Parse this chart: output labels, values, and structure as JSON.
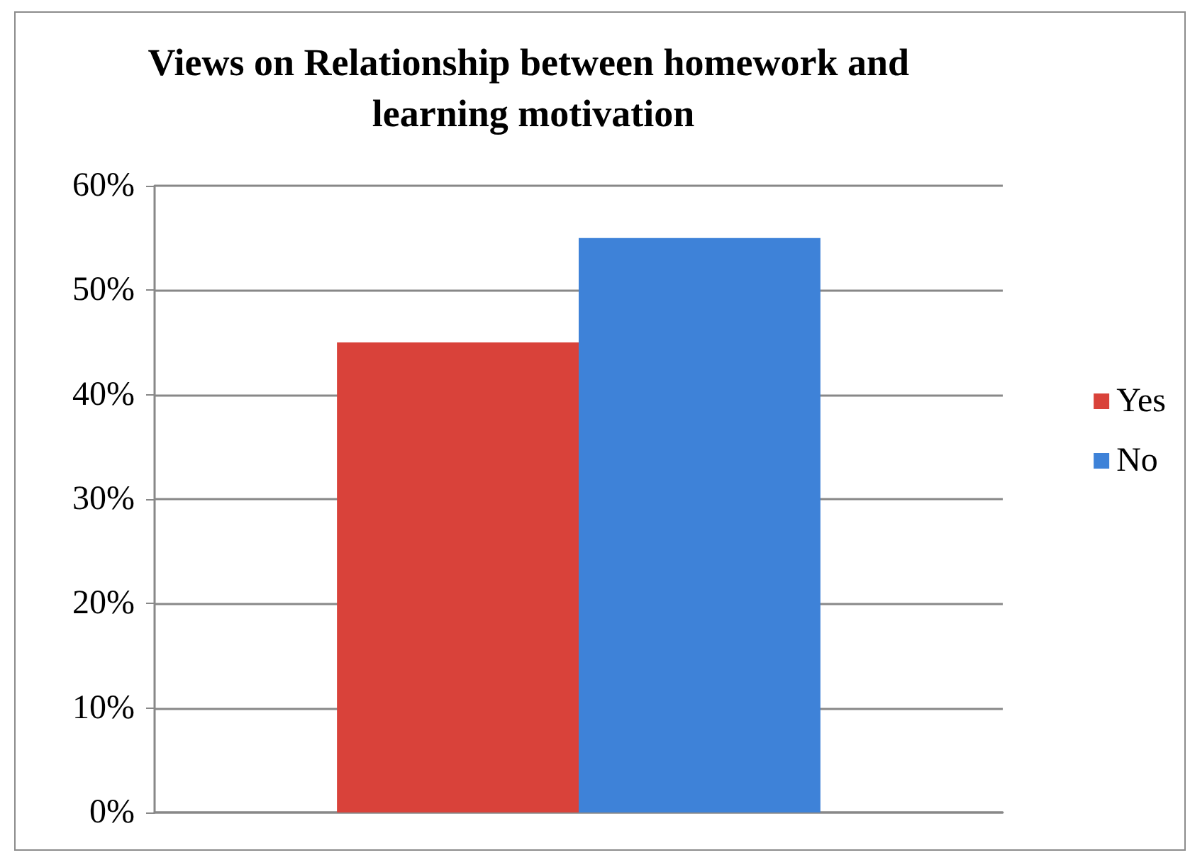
{
  "chart_data": {
    "type": "bar",
    "title": "Views on Relationship between homework and learning motivation",
    "categories": [
      null
    ],
    "series": [
      {
        "name": "Yes",
        "color": "#d9423a",
        "values": [
          45
        ]
      },
      {
        "name": "No",
        "color": "#3e82d8",
        "values": [
          55
        ]
      }
    ],
    "ylim": [
      0,
      60
    ],
    "yticks": [
      {
        "value": 0,
        "label": "0%"
      },
      {
        "value": 10,
        "label": "10%"
      },
      {
        "value": 20,
        "label": "20%"
      },
      {
        "value": 30,
        "label": "30%"
      },
      {
        "value": 40,
        "label": "40%"
      },
      {
        "value": 50,
        "label": "50%"
      },
      {
        "value": 60,
        "label": "60%"
      }
    ],
    "grid": "y",
    "legend": "right"
  }
}
